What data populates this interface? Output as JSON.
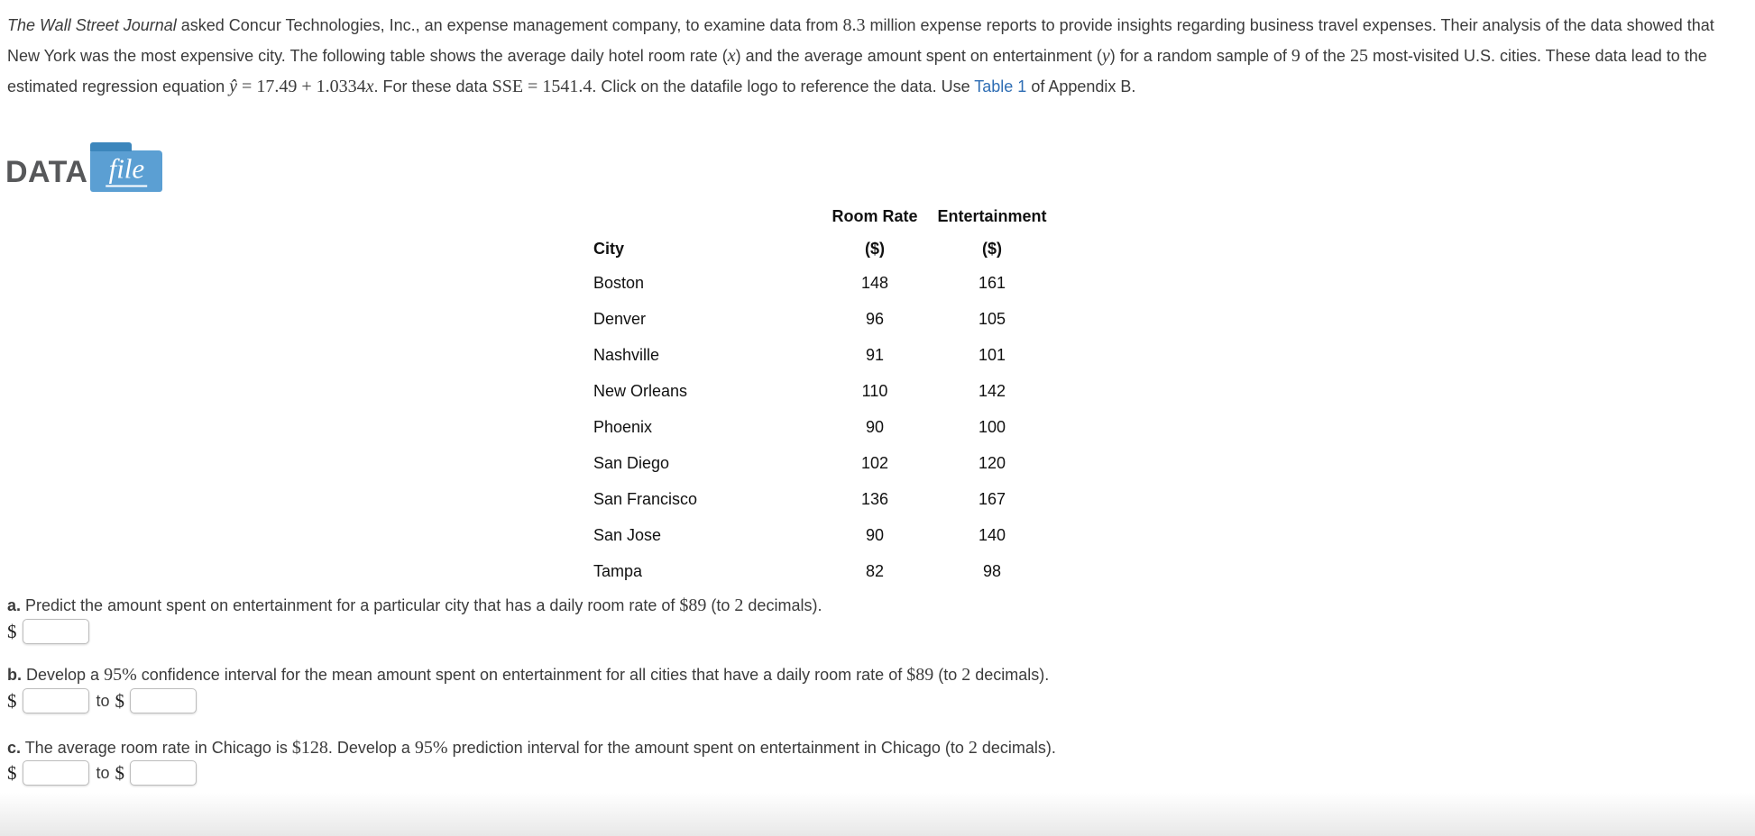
{
  "colors": {
    "link_blue": "#2e6db4",
    "folder_blue": "#5b9fd3",
    "folder_tab_blue": "#3c86bc",
    "logo_text_gray": "#57585a",
    "body_text": "#3b3b3b"
  },
  "intro": {
    "segments": [
      {
        "type": "i",
        "text": "The Wall Street Journal",
        "name": "journal-name"
      },
      {
        "type": "n",
        "text": " asked Concur Technologies, Inc., an expense management company, to examine data from "
      },
      {
        "type": "m",
        "text": "8.3"
      },
      {
        "type": "n",
        "text": " million expense reports to provide insights regarding business travel expenses. Their analysis of the data showed that New York was the most expensive city. The following table shows the average daily hotel room rate ("
      },
      {
        "type": "mi",
        "text": "x"
      },
      {
        "type": "n",
        "text": ") and the average amount spent on entertainment ("
      },
      {
        "type": "mi",
        "text": "y"
      },
      {
        "type": "n",
        "text": ") for a random sample of "
      },
      {
        "type": "m",
        "text": "9"
      },
      {
        "type": "n",
        "text": " of the "
      },
      {
        "type": "m",
        "text": "25"
      },
      {
        "type": "n",
        "text": " most-visited U.S. cities. These data lead to the estimated regression equation "
      },
      {
        "type": "mi",
        "text": "ŷ"
      },
      {
        "type": "m",
        "text": " = 17.49 + 1.0334"
      },
      {
        "type": "mi",
        "text": "x"
      },
      {
        "type": "n",
        "text": ". For these data "
      },
      {
        "type": "m",
        "text": "SSE = 1541.4"
      },
      {
        "type": "n",
        "text": ". Click on the datafile logo to reference the data. Use "
      },
      {
        "type": "link",
        "text": "Table 1",
        "name": "table-1-link"
      },
      {
        "type": "n",
        "text": " of Appendix B."
      }
    ]
  },
  "datafile": {
    "data_text": "DATA",
    "file_text": "file"
  },
  "table": {
    "headers": {
      "city": "City",
      "room_rate": "Room Rate",
      "entertainment": "Entertainment",
      "unit": "($)"
    },
    "rows": [
      {
        "city": "Boston",
        "room_rate": "148",
        "entertainment": "161"
      },
      {
        "city": "Denver",
        "room_rate": "96",
        "entertainment": "105"
      },
      {
        "city": "Nashville",
        "room_rate": "91",
        "entertainment": "101"
      },
      {
        "city": "New Orleans",
        "room_rate": "110",
        "entertainment": "142"
      },
      {
        "city": "Phoenix",
        "room_rate": "90",
        "entertainment": "100"
      },
      {
        "city": "San Diego",
        "room_rate": "102",
        "entertainment": "120"
      },
      {
        "city": "San Francisco",
        "room_rate": "136",
        "entertainment": "167"
      },
      {
        "city": "San Jose",
        "room_rate": "90",
        "entertainment": "140"
      },
      {
        "city": "Tampa",
        "room_rate": "82",
        "entertainment": "98"
      }
    ]
  },
  "questions": {
    "a": {
      "label": "a.",
      "segments": [
        {
          "type": "n",
          "text": " Predict the amount spent on entertainment for a particular city that has a daily room rate of "
        },
        {
          "type": "m",
          "text": "$89"
        },
        {
          "type": "n",
          "text": " (to "
        },
        {
          "type": "m",
          "text": "2"
        },
        {
          "type": "n",
          "text": " decimals)."
        }
      ],
      "currency": "$",
      "input_value": ""
    },
    "b": {
      "label": "b.",
      "segments": [
        {
          "type": "n",
          "text": " Develop a "
        },
        {
          "type": "m",
          "text": "95%"
        },
        {
          "type": "n",
          "text": " confidence interval for the mean amount spent on entertainment for all cities that have a daily room rate of "
        },
        {
          "type": "m",
          "text": "$89"
        },
        {
          "type": "n",
          "text": " (to "
        },
        {
          "type": "m",
          "text": "2"
        },
        {
          "type": "n",
          "text": " decimals)."
        }
      ],
      "currency": "$",
      "to_text": "to",
      "input_low": "",
      "input_high": ""
    },
    "c": {
      "label": "c.",
      "segments": [
        {
          "type": "n",
          "text": " The average room rate in Chicago is "
        },
        {
          "type": "m",
          "text": "$128"
        },
        {
          "type": "n",
          "text": ". Develop a "
        },
        {
          "type": "m",
          "text": "95%"
        },
        {
          "type": "n",
          "text": " prediction interval for the amount spent on entertainment in Chicago (to "
        },
        {
          "type": "m",
          "text": "2"
        },
        {
          "type": "n",
          "text": " decimals)."
        }
      ],
      "currency": "$",
      "to_text": "to",
      "input_low": "",
      "input_high": ""
    }
  }
}
